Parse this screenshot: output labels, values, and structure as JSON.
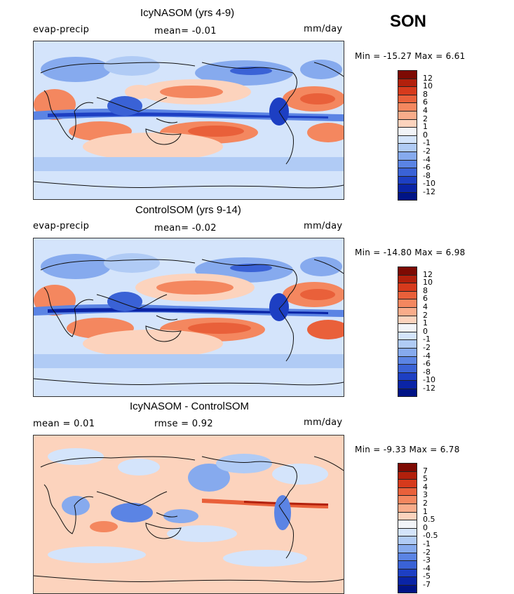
{
  "season": "SON",
  "panels": [
    {
      "title": "IcyNASOM (yrs 4-9)",
      "left_label": "evap-precip",
      "center_label": "mean=   -0.01",
      "units": "mm/day",
      "minmax": "Min = -15.27 Max =    6.61",
      "colorbar": {
        "labels": [
          "12",
          "10",
          "8",
          "6",
          "4",
          "2",
          "1",
          "0",
          "-1",
          "-2",
          "-4",
          "-6",
          "-8",
          "-10",
          "-12"
        ],
        "colors": [
          "#7d0a03",
          "#b2200c",
          "#d63a1c",
          "#e9603a",
          "#f4875f",
          "#f9ac8a",
          "#fcd3bd",
          "#f2f4f8",
          "#d4e4fb",
          "#b0cbf5",
          "#86aaee",
          "#5b84e4",
          "#3a62d6",
          "#1d3fc3",
          "#0a24a6",
          "#001486"
        ]
      }
    },
    {
      "title": "ControlSOM (yrs 9-14)",
      "left_label": "evap-precip",
      "center_label": "mean=   -0.02",
      "units": "mm/day",
      "minmax": "Min = -14.80 Max =    6.98",
      "colorbar": {
        "labels": [
          "12",
          "10",
          "8",
          "6",
          "4",
          "2",
          "1",
          "0",
          "-1",
          "-2",
          "-4",
          "-6",
          "-8",
          "-10",
          "-12"
        ],
        "colors": [
          "#7d0a03",
          "#b2200c",
          "#d63a1c",
          "#e9603a",
          "#f4875f",
          "#f9ac8a",
          "#fcd3bd",
          "#f2f4f8",
          "#d4e4fb",
          "#b0cbf5",
          "#86aaee",
          "#5b84e4",
          "#3a62d6",
          "#1d3fc3",
          "#0a24a6",
          "#001486"
        ]
      }
    },
    {
      "title": "IcyNASOM - ControlSOM",
      "left_label": "mean =    0.01",
      "center_label": "rmse =    0.92",
      "units": "mm/day",
      "minmax": "Min =  -9.33 Max =    6.78",
      "colorbar": {
        "labels": [
          "7",
          "5",
          "4",
          "3",
          "2",
          "1",
          "0.5",
          "0",
          "-0.5",
          "-1",
          "-2",
          "-3",
          "-4",
          "-5",
          "-7"
        ],
        "colors": [
          "#7d0a03",
          "#b2200c",
          "#d63a1c",
          "#e9603a",
          "#f4875f",
          "#f9ac8a",
          "#fcd3bd",
          "#f2f4f8",
          "#d4e4fb",
          "#b0cbf5",
          "#86aaee",
          "#5b84e4",
          "#3a62d6",
          "#1d3fc3",
          "#0a24a6",
          "#001486"
        ]
      }
    }
  ]
}
